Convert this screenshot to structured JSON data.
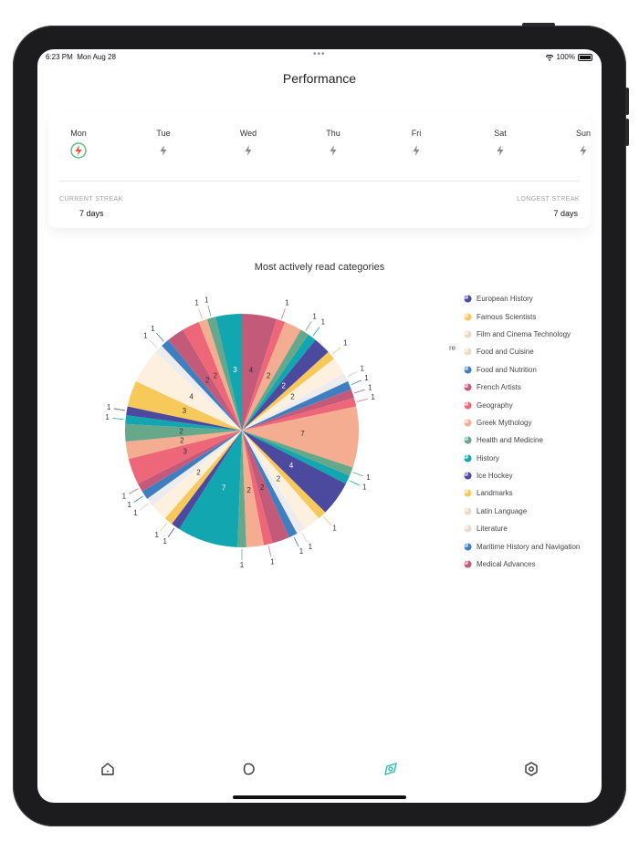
{
  "status_bar": {
    "time": "6:23 PM",
    "date": "Mon Aug 28",
    "battery": "100%"
  },
  "header": {
    "title": "Performance"
  },
  "week": {
    "days": [
      "Mon",
      "Tue",
      "Wed",
      "Thu",
      "Fri",
      "Sat",
      "Sun"
    ],
    "active_day": "Mon",
    "icon": "lightning-icon"
  },
  "streaks": {
    "current_label": "CURRENT STREAK",
    "current_value": "7 days",
    "longest_label": "LONGEST STREAK",
    "longest_value": "7 days"
  },
  "legend_overflow_text": "re",
  "tabbar": {
    "items": [
      {
        "name": "home",
        "icon": "home-icon",
        "active": false
      },
      {
        "name": "library",
        "icon": "books-icon",
        "active": false
      },
      {
        "name": "explore",
        "icon": "compass-icon",
        "active": true
      },
      {
        "name": "settings",
        "icon": "gear-icon",
        "active": false
      }
    ]
  },
  "colors": {
    "accent": "#2db6b0",
    "streak": "#e8542e"
  },
  "chart_data": {
    "type": "pie",
    "title": "Most actively read categories",
    "legend_position": "right",
    "categories": [
      {
        "name": "European History",
        "color": "#4b4a9e"
      },
      {
        "name": "Famous Scientists",
        "color": "#f7c85a"
      },
      {
        "name": "Film and Cinema Technology",
        "color": "#fdf0de"
      },
      {
        "name": "Food and Cuisine",
        "color": "#ebebf0"
      },
      {
        "name": "Food and Nutrition",
        "color": "#3f7fbf"
      },
      {
        "name": "French Artists",
        "color": "#c45a79"
      },
      {
        "name": "Geography",
        "color": "#ee6779"
      },
      {
        "name": "Greek Mythology",
        "color": "#f4ad90"
      },
      {
        "name": "Health and Medicine",
        "color": "#67a88a"
      },
      {
        "name": "History",
        "color": "#12a6b0"
      },
      {
        "name": "Ice Hockey",
        "color": "#4b4a9e"
      },
      {
        "name": "Landmarks",
        "color": "#f7c85a"
      },
      {
        "name": "Latin Language",
        "color": "#fdf0de"
      },
      {
        "name": "Literature",
        "color": "#ebebf0"
      },
      {
        "name": "Maritime History and Navigation",
        "color": "#3f7fbf"
      },
      {
        "name": "Medical Advances",
        "color": "#c45a79"
      }
    ],
    "slices": [
      {
        "value": 4,
        "color": "#c45a79"
      },
      {
        "value": 1,
        "color": "#ee6779"
      },
      {
        "value": 2,
        "color": "#f4ad90"
      },
      {
        "value": 1,
        "color": "#67a88a"
      },
      {
        "value": 1,
        "color": "#12a6b0"
      },
      {
        "value": 2,
        "color": "#4b4a9e"
      },
      {
        "value": 1,
        "color": "#f7c85a"
      },
      {
        "value": 2,
        "color": "#fdf0de"
      },
      {
        "value": 1,
        "color": "#ebebf0"
      },
      {
        "value": 1,
        "color": "#3f7fbf"
      },
      {
        "value": 1,
        "color": "#c45a79"
      },
      {
        "value": 1,
        "color": "#ee6779"
      },
      {
        "value": 7,
        "color": "#f4ad90"
      },
      {
        "value": 1,
        "color": "#67a88a"
      },
      {
        "value": 1,
        "color": "#12a6b0"
      },
      {
        "value": 4,
        "color": "#4b4a9e"
      },
      {
        "value": 1,
        "color": "#f7c85a"
      },
      {
        "value": 2,
        "color": "#fdf0de"
      },
      {
        "value": 1,
        "color": "#ebebf0"
      },
      {
        "value": 1,
        "color": "#3f7fbf"
      },
      {
        "value": 2,
        "color": "#c45a79"
      },
      {
        "value": 1,
        "color": "#ee6779"
      },
      {
        "value": 2,
        "color": "#f4ad90"
      },
      {
        "value": 1,
        "color": "#67a88a"
      },
      {
        "value": 7,
        "color": "#12a6b0"
      },
      {
        "value": 1,
        "color": "#4b4a9e"
      },
      {
        "value": 1,
        "color": "#f7c85a"
      },
      {
        "value": 2,
        "color": "#fdf0de"
      },
      {
        "value": 1,
        "color": "#ebebf0"
      },
      {
        "value": 1,
        "color": "#3f7fbf"
      },
      {
        "value": 1,
        "color": "#c45a79"
      },
      {
        "value": 3,
        "color": "#ee6779"
      },
      {
        "value": 2,
        "color": "#f4ad90"
      },
      {
        "value": 2,
        "color": "#67a88a"
      },
      {
        "value": 1,
        "color": "#12a6b0"
      },
      {
        "value": 1,
        "color": "#4b4a9e"
      },
      {
        "value": 3,
        "color": "#f7c85a"
      },
      {
        "value": 4,
        "color": "#fdf0de"
      },
      {
        "value": 1,
        "color": "#ebebf0"
      },
      {
        "value": 1,
        "color": "#3f7fbf"
      },
      {
        "value": 2,
        "color": "#c45a79"
      },
      {
        "value": 2,
        "color": "#ee6779"
      },
      {
        "value": 1,
        "color": "#f4ad90"
      },
      {
        "value": 1,
        "color": "#67a88a"
      },
      {
        "value": 3,
        "color": "#12a6b0"
      }
    ]
  }
}
